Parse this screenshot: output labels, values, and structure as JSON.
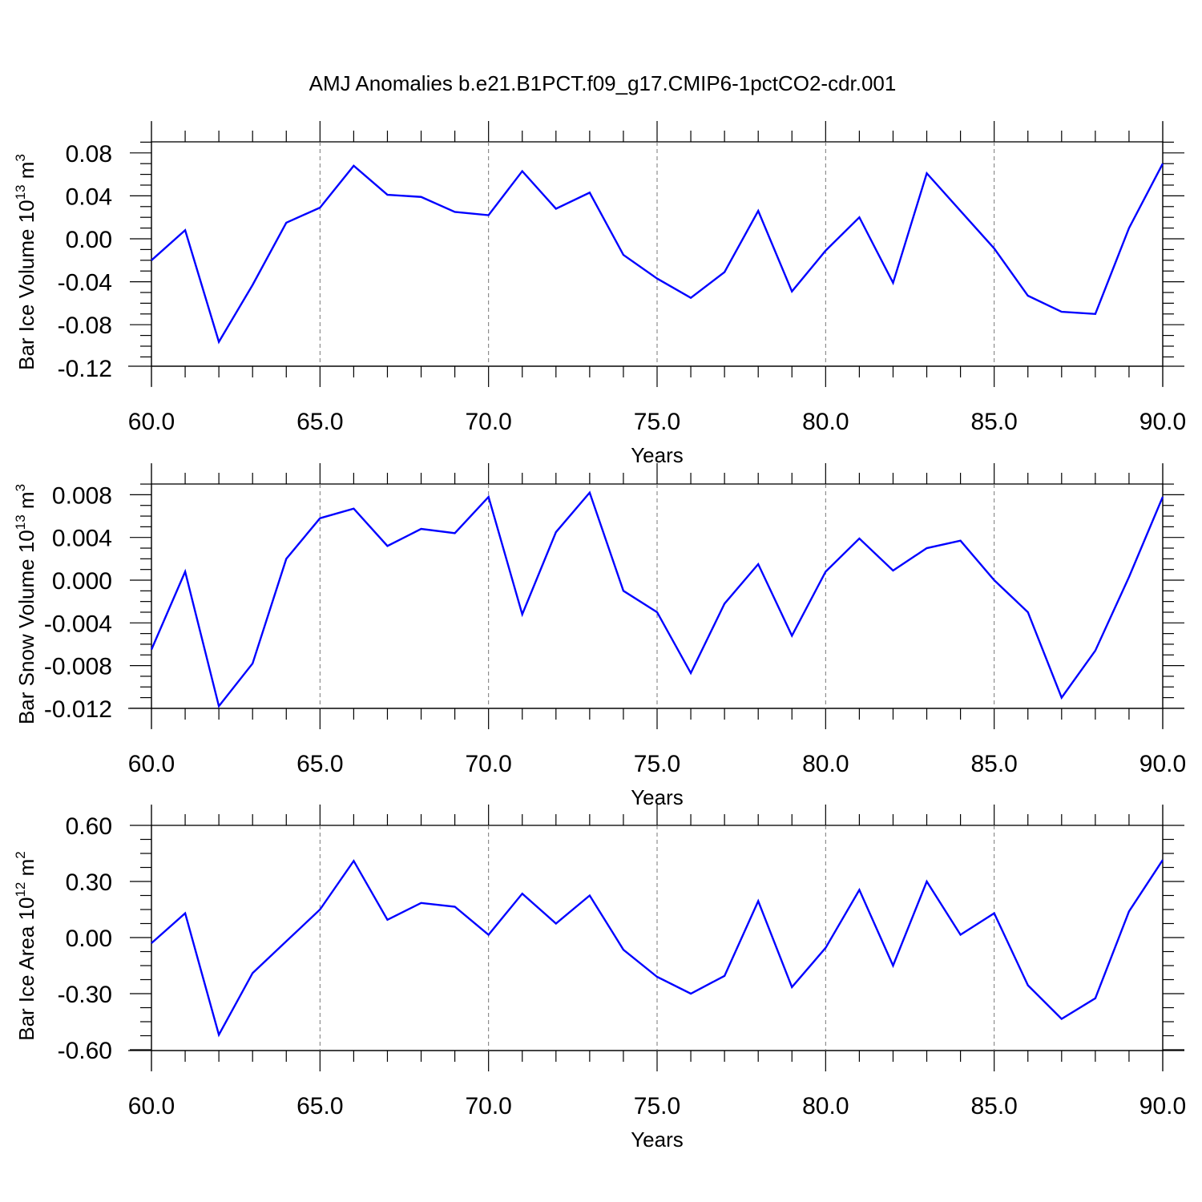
{
  "title": "AMJ Anomalies b.e21.B1PCT.f09_g17.CMIP6-1pctCO2-cdr.001",
  "colors": {
    "series": "#0000ff",
    "grid": "#777777",
    "axes": "#000000"
  },
  "chart_data": [
    {
      "type": "line",
      "ylabel_main": "Bar Ice Volume 10",
      "ylabel_exp": "13",
      "ylabel_unit": " m",
      "ylabel_unit_exp": "3",
      "xlabel": "Years",
      "xlim": [
        60,
        90
      ],
      "ylim": [
        -0.12,
        0.09
      ],
      "xticks": [
        60,
        65,
        70,
        75,
        80,
        85,
        90
      ],
      "xtick_labels": [
        "60.0",
        "65.0",
        "70.0",
        "75.0",
        "80.0",
        "85.0",
        "90.0"
      ],
      "yticks": [
        -0.12,
        -0.08,
        -0.04,
        0.0,
        0.04,
        0.08
      ],
      "ytick_labels": [
        "-0.12",
        "-0.08",
        "-0.04",
        "0.00",
        "0.04",
        "0.08"
      ],
      "x": [
        60,
        61,
        62,
        63,
        64,
        65,
        66,
        67,
        68,
        69,
        70,
        71,
        72,
        73,
        74,
        75,
        76,
        77,
        78,
        79,
        80,
        81,
        82,
        83,
        84,
        85,
        86,
        87,
        88,
        89,
        90
      ],
      "values": [
        -0.02,
        0.008,
        -0.096,
        -0.043,
        0.015,
        0.029,
        0.068,
        0.041,
        0.039,
        0.025,
        0.022,
        0.063,
        0.028,
        0.043,
        -0.015,
        -0.037,
        -0.055,
        -0.031,
        0.026,
        -0.049,
        -0.011,
        0.02,
        -0.041,
        0.061,
        0.026,
        -0.009,
        -0.053,
        -0.068,
        -0.07,
        0.01,
        0.07
      ],
      "grid": "vertical dashed at major x ticks"
    },
    {
      "type": "line",
      "ylabel_main": "Bar Snow Volume 10",
      "ylabel_exp": "13",
      "ylabel_unit": " m",
      "ylabel_unit_exp": "3",
      "xlabel": "Years",
      "xlim": [
        60,
        90
      ],
      "ylim": [
        -0.012,
        0.009
      ],
      "xticks": [
        60,
        65,
        70,
        75,
        80,
        85,
        90
      ],
      "xtick_labels": [
        "60.0",
        "65.0",
        "70.0",
        "75.0",
        "80.0",
        "85.0",
        "90.0"
      ],
      "yticks": [
        -0.012,
        -0.008,
        -0.004,
        0.0,
        0.004,
        0.008
      ],
      "ytick_labels": [
        "-0.012",
        "-0.008",
        "-0.004",
        "0.000",
        "0.004",
        "0.008"
      ],
      "x": [
        60,
        61,
        62,
        63,
        64,
        65,
        66,
        67,
        68,
        69,
        70,
        71,
        72,
        73,
        74,
        75,
        76,
        77,
        78,
        79,
        80,
        81,
        82,
        83,
        84,
        85,
        86,
        87,
        88,
        89,
        90
      ],
      "values": [
        -0.0065,
        0.0008,
        -0.0118,
        -0.0078,
        0.002,
        0.0058,
        0.0067,
        0.0032,
        0.0048,
        0.0044,
        0.0078,
        -0.0032,
        0.0045,
        0.0082,
        -0.001,
        -0.003,
        -0.0087,
        -0.0022,
        0.0015,
        -0.0052,
        0.0008,
        0.0039,
        0.0009,
        0.003,
        0.0037,
        0.0,
        -0.003,
        -0.011,
        -0.0066,
        0.0003,
        0.0078
      ],
      "grid": "vertical dashed at major x ticks"
    },
    {
      "type": "line",
      "ylabel_main": "Bar Ice Area 10",
      "ylabel_exp": "12",
      "ylabel_unit": " m",
      "ylabel_unit_exp": "2",
      "xlabel": "Years",
      "xlim": [
        60,
        90
      ],
      "ylim": [
        -0.6,
        0.6
      ],
      "xticks": [
        60,
        65,
        70,
        75,
        80,
        85,
        90
      ],
      "xtick_labels": [
        "60.0",
        "65.0",
        "70.0",
        "75.0",
        "80.0",
        "85.0",
        "90.0"
      ],
      "yticks": [
        -0.6,
        -0.3,
        0.0,
        0.3,
        0.6
      ],
      "ytick_labels": [
        "-0.60",
        "-0.30",
        "0.00",
        "0.30",
        "0.60"
      ],
      "x": [
        60,
        61,
        62,
        63,
        64,
        65,
        66,
        67,
        68,
        69,
        70,
        71,
        72,
        73,
        74,
        75,
        76,
        77,
        78,
        79,
        80,
        81,
        82,
        83,
        84,
        85,
        86,
        87,
        88,
        89,
        90
      ],
      "values": [
        -0.03,
        0.13,
        -0.52,
        -0.19,
        -0.02,
        0.15,
        0.41,
        0.095,
        0.185,
        0.165,
        0.015,
        0.235,
        0.075,
        0.225,
        -0.065,
        -0.21,
        -0.3,
        -0.205,
        0.195,
        -0.265,
        -0.055,
        0.255,
        -0.15,
        0.3,
        0.015,
        0.13,
        -0.255,
        -0.435,
        -0.325,
        0.14,
        0.415
      ],
      "grid": "vertical dashed at major x ticks"
    }
  ]
}
